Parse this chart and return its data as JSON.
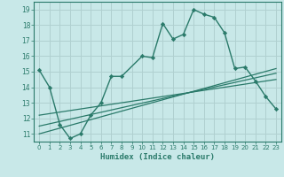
{
  "bg_color": "#c8e8e8",
  "grid_color": "#b0d0d0",
  "line_color": "#2a7a6a",
  "xlabel": "Humidex (Indice chaleur)",
  "xlim": [
    -0.5,
    23.5
  ],
  "ylim": [
    10.5,
    19.5
  ],
  "yticks": [
    11,
    12,
    13,
    14,
    15,
    16,
    17,
    18,
    19
  ],
  "xticks": [
    0,
    1,
    2,
    3,
    4,
    5,
    6,
    7,
    8,
    9,
    10,
    11,
    12,
    13,
    14,
    15,
    16,
    17,
    18,
    19,
    20,
    21,
    22,
    23
  ],
  "line1_x": [
    0,
    1,
    2,
    3,
    4,
    5,
    6,
    7,
    8,
    10,
    11,
    12,
    13,
    14,
    15,
    16,
    17,
    18,
    19,
    20,
    21,
    22,
    23
  ],
  "line1_y": [
    15.1,
    14.0,
    11.6,
    10.7,
    11.0,
    12.2,
    13.0,
    14.7,
    14.7,
    16.0,
    15.9,
    18.1,
    17.1,
    17.4,
    19.0,
    18.7,
    18.5,
    17.5,
    15.2,
    15.3,
    14.4,
    13.4,
    12.6
  ],
  "line2_x": [
    0,
    23
  ],
  "line2_y": [
    11.0,
    15.2
  ],
  "line3_x": [
    0,
    23
  ],
  "line3_y": [
    11.5,
    14.9
  ],
  "line4_x": [
    0,
    23
  ],
  "line4_y": [
    12.2,
    14.5
  ]
}
